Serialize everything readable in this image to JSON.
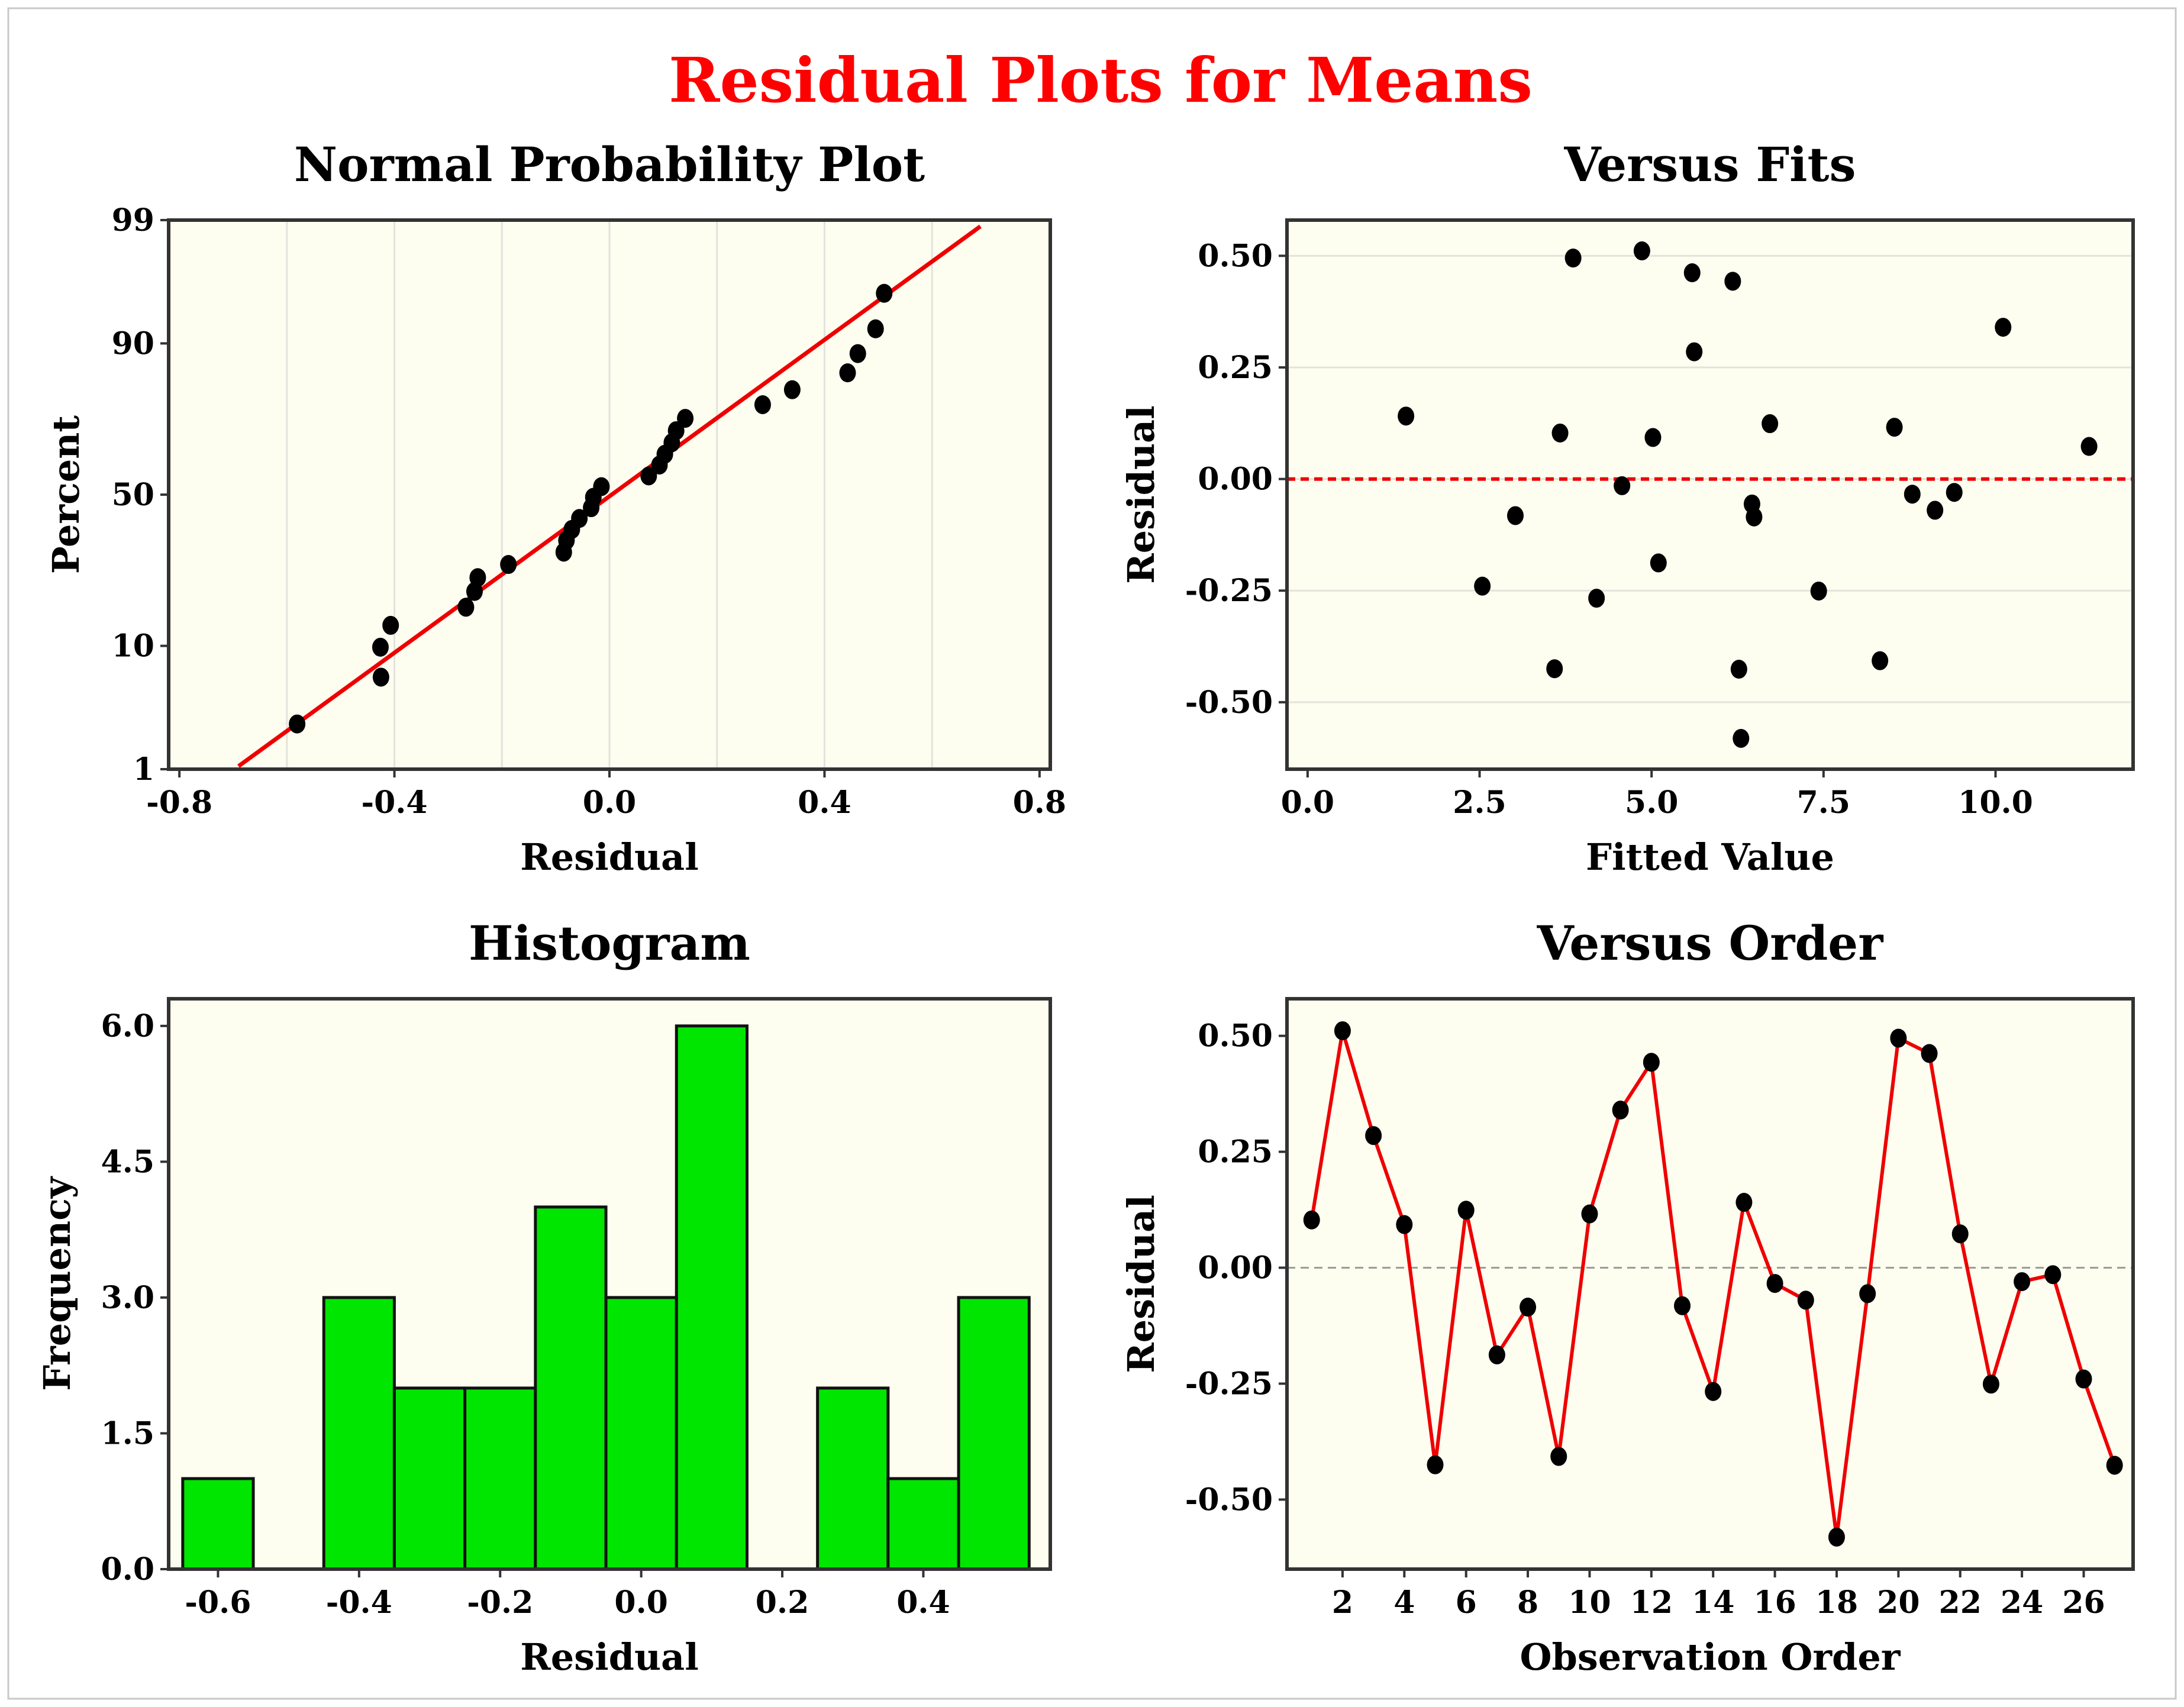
{
  "page": {
    "title": "Residual Plots for Means"
  },
  "colors": {
    "title": "#ff0000",
    "subtitle_normal": "#333333",
    "plot_bg": "#fdfdf0",
    "grid": "#e3e3dc",
    "fit_line": "#ee0000",
    "marker": "#000000",
    "bar": "#00e600",
    "order_line": "#ee0000",
    "zero_line_fits": "#ee0000",
    "zero_line_order": "#999999"
  },
  "chart_data": [
    {
      "id": "normal",
      "type": "scatter",
      "title": "Normal Probability Plot",
      "xlabel": "Residual",
      "ylabel": "Percent",
      "xlim": [
        -0.82,
        0.82
      ],
      "xticks": [
        -0.8,
        -0.4,
        0.0,
        0.4,
        0.8
      ],
      "xtick_labels": [
        "-0.8",
        "-0.4",
        "0.0",
        "0.4",
        "0.8"
      ],
      "yticks": [
        1,
        10,
        50,
        90,
        99
      ],
      "ytick_labels": [
        "1",
        "10",
        "50",
        "90",
        "99"
      ],
      "points": [
        {
          "residual": -0.581,
          "percent": 2.6
        },
        {
          "residual": -0.425,
          "percent": 6.1
        },
        {
          "residual": -0.426,
          "percent": 9.8
        },
        {
          "residual": -0.407,
          "percent": 13.4
        },
        {
          "residual": -0.267,
          "percent": 17.0
        },
        {
          "residual": -0.251,
          "percent": 20.6
        },
        {
          "residual": -0.245,
          "percent": 24.1
        },
        {
          "residual": -0.188,
          "percent": 27.7
        },
        {
          "residual": -0.085,
          "percent": 31.3
        },
        {
          "residual": -0.08,
          "percent": 34.9
        },
        {
          "residual": -0.07,
          "percent": 38.4
        },
        {
          "residual": -0.056,
          "percent": 42.0
        },
        {
          "residual": -0.034,
          "percent": 45.6
        },
        {
          "residual": -0.03,
          "percent": 49.1
        },
        {
          "residual": -0.015,
          "percent": 52.7
        },
        {
          "residual": 0.073,
          "percent": 56.3
        },
        {
          "residual": 0.093,
          "percent": 59.9
        },
        {
          "residual": 0.103,
          "percent": 63.4
        },
        {
          "residual": 0.116,
          "percent": 67.0
        },
        {
          "residual": 0.124,
          "percent": 70.6
        },
        {
          "residual": 0.141,
          "percent": 74.1
        },
        {
          "residual": 0.285,
          "percent": 77.7
        },
        {
          "residual": 0.34,
          "percent": 81.3
        },
        {
          "residual": 0.443,
          "percent": 84.9
        },
        {
          "residual": 0.462,
          "percent": 88.4
        },
        {
          "residual": 0.495,
          "percent": 92.0
        },
        {
          "residual": 0.511,
          "percent": 95.6
        }
      ],
      "fit_line": [
        {
          "residual": -0.69,
          "percent": 1.07
        },
        {
          "residual": 0.69,
          "percent": 98.85
        }
      ]
    },
    {
      "id": "fits",
      "type": "scatter",
      "title": "Versus Fits",
      "xlabel": "Fitted Value",
      "ylabel": "Residual",
      "xlim": [
        -0.3,
        12.0
      ],
      "ylim": [
        -0.65,
        0.58
      ],
      "xticks": [
        0.0,
        2.5,
        5.0,
        7.5,
        10.0
      ],
      "xtick_labels": [
        "0.0",
        "2.5",
        "5.0",
        "7.5",
        "10.0"
      ],
      "yticks": [
        0.5,
        0.25,
        0.0,
        -0.25,
        -0.5
      ],
      "ytick_labels": [
        "0.50",
        "0.25",
        "0.00",
        "-0.25",
        "-0.50"
      ],
      "zero_line": 0.0,
      "points": [
        {
          "x": 1.43,
          "y": 0.141
        },
        {
          "x": 2.54,
          "y": -0.24
        },
        {
          "x": 3.02,
          "y": -0.082
        },
        {
          "x": 3.59,
          "y": -0.425
        },
        {
          "x": 3.67,
          "y": 0.103
        },
        {
          "x": 3.86,
          "y": 0.495
        },
        {
          "x": 4.2,
          "y": -0.267
        },
        {
          "x": 4.57,
          "y": -0.015
        },
        {
          "x": 4.86,
          "y": 0.511
        },
        {
          "x": 5.02,
          "y": 0.093
        },
        {
          "x": 5.1,
          "y": -0.188
        },
        {
          "x": 5.59,
          "y": 0.462
        },
        {
          "x": 5.62,
          "y": 0.285
        },
        {
          "x": 6.18,
          "y": 0.443
        },
        {
          "x": 6.27,
          "y": -0.426
        },
        {
          "x": 6.3,
          "y": -0.581
        },
        {
          "x": 6.46,
          "y": -0.056
        },
        {
          "x": 6.49,
          "y": -0.085
        },
        {
          "x": 6.72,
          "y": 0.124
        },
        {
          "x": 7.43,
          "y": -0.251
        },
        {
          "x": 8.32,
          "y": -0.407
        },
        {
          "x": 8.53,
          "y": 0.116
        },
        {
          "x": 8.79,
          "y": -0.034
        },
        {
          "x": 9.12,
          "y": -0.07
        },
        {
          "x": 9.4,
          "y": -0.03
        },
        {
          "x": 10.11,
          "y": 0.34
        },
        {
          "x": 11.36,
          "y": 0.073
        }
      ]
    },
    {
      "id": "hist",
      "type": "bar",
      "title": "Histogram",
      "xlabel": "Residual",
      "ylabel": "Frequency",
      "xlim": [
        -0.67,
        0.58
      ],
      "ylim": [
        0,
        6.3
      ],
      "xticks": [
        -0.6,
        -0.4,
        -0.2,
        0.0,
        0.2,
        0.4
      ],
      "xtick_labels": [
        "-0.6",
        "-0.4",
        "-0.2",
        "0.0",
        "0.2",
        "0.4"
      ],
      "yticks": [
        0.0,
        1.5,
        3.0,
        4.5,
        6.0
      ],
      "ytick_labels": [
        "0.0",
        "1.5",
        "3.0",
        "4.5",
        "6.0"
      ],
      "bin_width": 0.1,
      "bin_centers": [
        -0.6,
        -0.5,
        -0.4,
        -0.3,
        -0.2,
        -0.1,
        0.0,
        0.1,
        0.2,
        0.3,
        0.4,
        0.5
      ],
      "values": [
        1,
        0,
        3,
        2,
        2,
        4,
        3,
        6,
        0,
        2,
        1,
        3
      ]
    },
    {
      "id": "order",
      "type": "line",
      "title": "Versus Order",
      "xlabel": "Observation Order",
      "ylabel": "Residual",
      "xlim": [
        0.2,
        27.6
      ],
      "ylim": [
        -0.65,
        0.58
      ],
      "xticks": [
        2,
        4,
        6,
        8,
        10,
        12,
        14,
        16,
        18,
        20,
        22,
        24,
        26
      ],
      "xtick_labels": [
        "2",
        "4",
        "6",
        "8",
        "10",
        "12",
        "14",
        "16",
        "18",
        "20",
        "22",
        "24",
        "26"
      ],
      "yticks": [
        0.5,
        0.25,
        0.0,
        -0.25,
        -0.5
      ],
      "ytick_labels": [
        "0.50",
        "0.25",
        "0.00",
        "-0.25",
        "-0.50"
      ],
      "zero_line": 0.0,
      "x": [
        1,
        2,
        3,
        4,
        5,
        6,
        7,
        8,
        9,
        10,
        11,
        12,
        13,
        14,
        15,
        16,
        17,
        18,
        19,
        20,
        21,
        22,
        23,
        24,
        25,
        26,
        27
      ],
      "values": [
        0.103,
        0.511,
        0.285,
        0.093,
        -0.425,
        0.124,
        -0.188,
        -0.085,
        -0.407,
        0.116,
        0.34,
        0.443,
        -0.082,
        -0.267,
        0.141,
        -0.034,
        -0.07,
        -0.581,
        -0.056,
        0.495,
        0.462,
        0.073,
        -0.251,
        -0.03,
        -0.015,
        -0.24,
        -0.426
      ]
    }
  ]
}
